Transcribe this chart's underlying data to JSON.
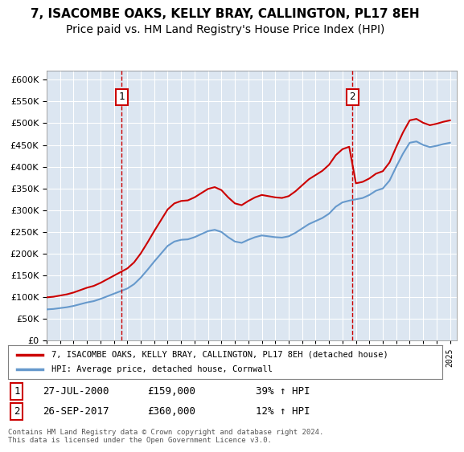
{
  "title": "7, ISACOMBE OAKS, KELLY BRAY, CALLINGTON, PL17 8EH",
  "subtitle": "Price paid vs. HM Land Registry's House Price Index (HPI)",
  "ylabel_ticks": [
    "£0",
    "£50K",
    "£100K",
    "£150K",
    "£200K",
    "£250K",
    "£300K",
    "£350K",
    "£400K",
    "£450K",
    "£500K",
    "£550K",
    "£600K"
  ],
  "ylim": [
    0,
    620000
  ],
  "ytick_vals": [
    0,
    50000,
    100000,
    150000,
    200000,
    250000,
    300000,
    350000,
    400000,
    450000,
    500000,
    550000,
    600000
  ],
  "x_start_year": 1995,
  "x_end_year": 2025,
  "background_color": "#dce6f1",
  "plot_bg_color": "#dce6f1",
  "legend_line1": "7, ISACOMBE OAKS, KELLY BRAY, CALLINGTON, PL17 8EH (detached house)",
  "legend_line2": "HPI: Average price, detached house, Cornwall",
  "sale1_label": "1",
  "sale1_date": "27-JUL-2000",
  "sale1_price": "£159,000",
  "sale1_hpi": "39% ↑ HPI",
  "sale1_year": 2000.57,
  "sale1_value": 159000,
  "sale2_label": "2",
  "sale2_date": "26-SEP-2017",
  "sale2_price": "£360,000",
  "sale2_hpi": "12% ↑ HPI",
  "sale2_year": 2017.73,
  "sale2_value": 360000,
  "footer": "Contains HM Land Registry data © Crown copyright and database right 2024.\nThis data is licensed under the Open Government Licence v3.0.",
  "red_line_color": "#cc0000",
  "blue_line_color": "#6699cc",
  "title_fontsize": 11,
  "subtitle_fontsize": 10
}
